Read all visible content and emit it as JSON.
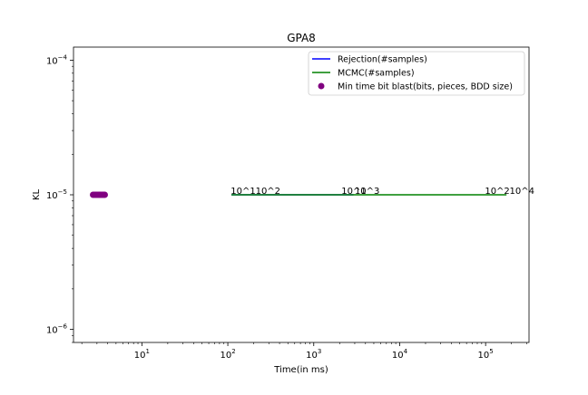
{
  "chart_data": {
    "type": "line",
    "title": "GPA8",
    "xlabel": "Time(in ms)",
    "ylabel": "KL",
    "xscale": "log",
    "yscale": "log",
    "xlim": [
      1.6,
      320000
    ],
    "ylim": [
      8e-07,
      0.000125
    ],
    "x_ticks": [
      {
        "value": 10,
        "label": "10",
        "exp": "1"
      },
      {
        "value": 100,
        "label": "10",
        "exp": "2"
      },
      {
        "value": 1000,
        "label": "10",
        "exp": "3"
      },
      {
        "value": 10000,
        "label": "10",
        "exp": "4"
      },
      {
        "value": 100000,
        "label": "10",
        "exp": "5"
      }
    ],
    "y_ticks": [
      {
        "value": 1e-06,
        "label": "10",
        "exp": "−6"
      },
      {
        "value": 1e-05,
        "label": "10",
        "exp": "−5"
      },
      {
        "value": 0.0001,
        "label": "10",
        "exp": "−4"
      }
    ],
    "grid": false,
    "legend_position": "top-right",
    "series": [
      {
        "name": "Rejection(#samples)",
        "kind": "line",
        "color": "#0000ff",
        "x": [
          110,
          2900
        ],
        "y": [
          1e-05,
          1e-05
        ]
      },
      {
        "name": "MCMC(#samples)",
        "kind": "line",
        "color": "#008000",
        "x": [
          110,
          175000
        ],
        "y": [
          1e-05,
          1e-05
        ]
      },
      {
        "name": "Min time bit blast(bits, pieces, BDD size)",
        "kind": "scatter",
        "color": "#800080",
        "x": [
          2.7,
          2.8,
          2.9,
          3.0,
          3.1,
          3.2,
          3.3,
          3.4,
          3.5,
          3.6,
          3.7
        ],
        "y": [
          1e-05,
          1e-05,
          1e-05,
          1e-05,
          1e-05,
          1e-05,
          1e-05,
          1e-05,
          1e-05,
          1e-05,
          1e-05
        ]
      }
    ],
    "annotations": [
      {
        "text": "10^1",
        "x": 108,
        "y": 1e-05
      },
      {
        "text": "10^2",
        "x": 210,
        "y": 1e-05
      },
      {
        "text": "10^1",
        "x": 2100,
        "y": 1e-05
      },
      {
        "text": "10^3",
        "x": 3000,
        "y": 1e-05
      },
      {
        "text": "10^2",
        "x": 98000,
        "y": 1e-05
      },
      {
        "text": "10^4",
        "x": 190000,
        "y": 1e-05
      }
    ]
  }
}
